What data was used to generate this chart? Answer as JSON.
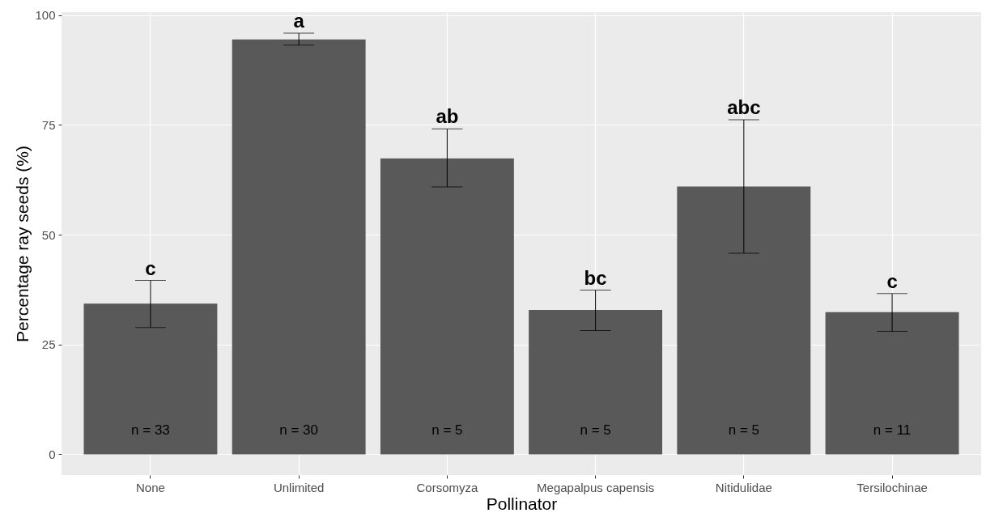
{
  "chart_data": {
    "type": "bar",
    "xlabel": "Pollinator",
    "ylabel": "Percentage ray seeds (%)",
    "categories": [
      "None",
      "Unlimited",
      "Corsomyza",
      "Megapalpus capensis",
      "Nitidulidae",
      "Tersilochinae"
    ],
    "values": [
      34.3,
      94.5,
      67.4,
      32.9,
      61.0,
      32.4
    ],
    "errors": [
      [
        28.9,
        39.6
      ],
      [
        93.2,
        95.9
      ],
      [
        60.9,
        74.1
      ],
      [
        28.2,
        37.4
      ],
      [
        45.8,
        76.2
      ],
      [
        28.0,
        36.6
      ]
    ],
    "color": "#595959",
    "ylim": [
      -4.7,
      100.7
    ],
    "yticks": [
      0,
      25,
      50,
      75,
      100
    ],
    "grid": true,
    "annotations": [
      {
        "text": "c",
        "x": "None",
        "y": 39.6
      },
      {
        "text": "a",
        "x": "Unlimited",
        "y": 95.9
      },
      {
        "text": "ab",
        "x": "Corsomyza",
        "y": 74.1
      },
      {
        "text": "bc",
        "x": "Megapalpus capensis",
        "y": 37.4
      },
      {
        "text": "abc",
        "x": "Nitidulidae",
        "y": 76.2
      },
      {
        "text": "c",
        "x": "Tersilochinae",
        "y": 36.6
      },
      "n = 33",
      "n = 30",
      "n = 5",
      "n = 5",
      "n = 5",
      "n = 11"
    ]
  }
}
